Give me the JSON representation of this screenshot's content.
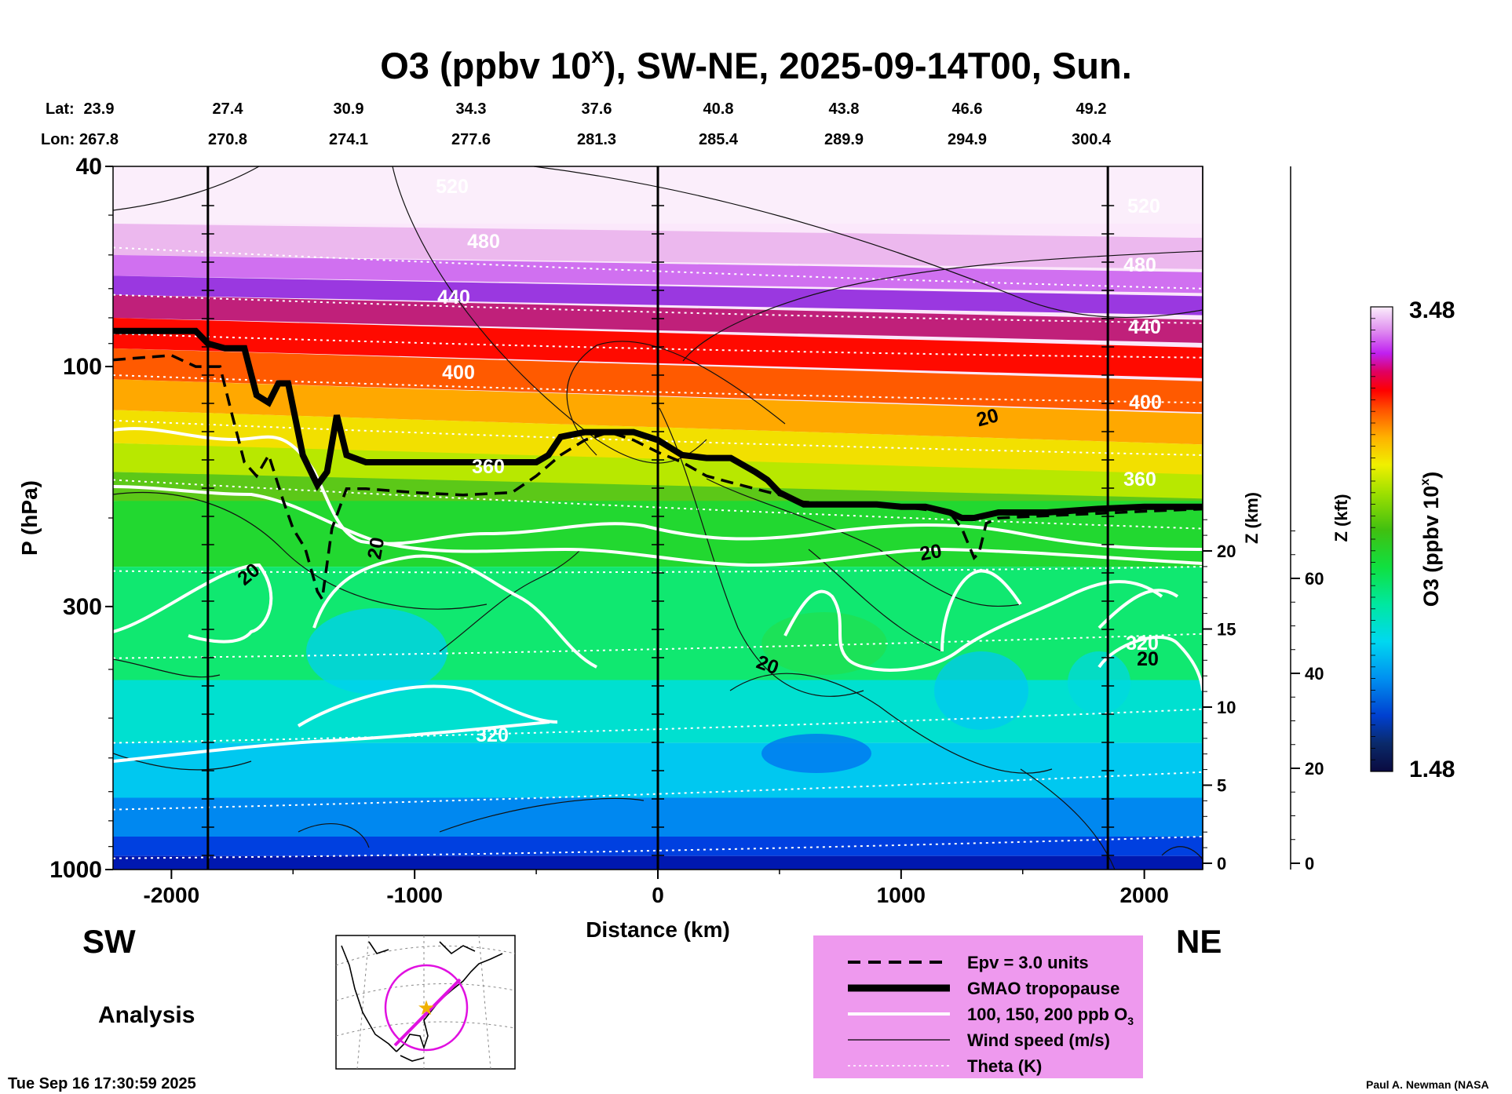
{
  "title": {
    "main": "O3 (ppbv 10",
    "sup": "x",
    "rest": "), SW-NE, 2025-09-14T00, Sun."
  },
  "header": {
    "lat_label": "Lat:",
    "lon_label": "Lon:",
    "lat": [
      "23.9",
      "27.4",
      "30.9",
      "34.3",
      "37.6",
      "40.8",
      "43.8",
      "46.6",
      "49.2"
    ],
    "lon": [
      "267.8",
      "270.8",
      "274.1",
      "277.6",
      "281.3",
      "285.4",
      "289.9",
      "294.9",
      "300.4"
    ]
  },
  "left_label": "SW",
  "right_label": "NE",
  "analysis_label": "Analysis",
  "timestamp": "Tue Sep 16 17:30:59 2025",
  "credit": "Paul A. Newman (NASA",
  "colorbar": {
    "max_label": "3.48",
    "min_label": "1.48",
    "title_main": "O3 (ppbv 10",
    "title_sup": "x",
    "title_rest": ")"
  },
  "legend": {
    "items": [
      {
        "label": "Epv = 3.0 units",
        "style": "dashed"
      },
      {
        "label": "GMAO tropopause",
        "style": "thick"
      },
      {
        "label": "100, 150, 200 ppb O",
        "sub": "3",
        "style": "white"
      },
      {
        "label": "Wind speed (m/s)",
        "style": "thin"
      },
      {
        "label": "Theta (K)",
        "style": "dotted"
      }
    ],
    "background": "#ee99ee"
  },
  "contour_labels": {
    "theta": [
      "520",
      "480",
      "440",
      "400",
      "360",
      "320",
      "520",
      "480",
      "440",
      "400",
      "360",
      "320"
    ],
    "wind": [
      "20",
      "20",
      "20",
      "20",
      "20",
      "20"
    ]
  },
  "chart_data": {
    "type": "heatmap",
    "xlabel": "Distance (km)",
    "ylabel": "P (hPa)",
    "y2label": "Z (km)",
    "y3label": "Z (kft)",
    "xlim": [
      -2240,
      2240
    ],
    "ylim": [
      1000,
      40
    ],
    "yscale": "log",
    "x_ticks": [
      -2000,
      -1000,
      0,
      1000,
      2000
    ],
    "x_tick_labels": [
      "-2000",
      "-1000",
      "0",
      "1000",
      "2000"
    ],
    "y_ticks": [
      1000,
      300,
      100,
      40
    ],
    "y_tick_labels": [
      "1000",
      "300",
      "100",
      "40"
    ],
    "z_km_ticks": [
      0,
      5,
      10,
      15,
      20
    ],
    "z_km_tick_labels": [
      "0",
      "5",
      "10",
      "15",
      "20"
    ],
    "z_kft_ticks": [
      0,
      20,
      40,
      60
    ],
    "z_kft_tick_labels": [
      "0",
      "20",
      "40",
      "60"
    ],
    "colorbar_range": [
      1.48,
      3.48
    ],
    "vertical_lines_km": [
      -1850,
      0,
      1850
    ],
    "tropopause": {
      "x": [
        -2240,
        -1900,
        -1850,
        -1780,
        -1700,
        -1650,
        -1600,
        -1560,
        -1520,
        -1460,
        -1400,
        -1360,
        -1320,
        -1280,
        -1200,
        -1000,
        -800,
        -600,
        -500,
        -450,
        -400,
        -300,
        -200,
        -100,
        0,
        100,
        200,
        300,
        400,
        450,
        500,
        600,
        700,
        800,
        900,
        1000,
        1100,
        1200,
        1250,
        1300,
        1400,
        1600,
        1800,
        2000,
        2240
      ],
      "p": [
        85,
        85,
        90,
        92,
        92,
        114,
        118,
        108,
        108,
        150,
        172,
        162,
        125,
        150,
        155,
        155,
        155,
        155,
        155,
        150,
        138,
        135,
        135,
        135,
        140,
        150,
        152,
        152,
        162,
        168,
        178,
        188,
        188,
        188,
        188,
        190,
        190,
        195,
        200,
        200,
        195,
        195,
        192,
        190,
        190
      ]
    },
    "epv_3": {
      "x": [
        -2240,
        -2000,
        -1900,
        -1800,
        -1750,
        -1700,
        -1650,
        -1600,
        -1540,
        -1500,
        -1450,
        -1400,
        -1380,
        -1340,
        -1280,
        -1200,
        -1000,
        -800,
        -600,
        -500,
        -400,
        -300,
        -200,
        -100,
        0,
        100,
        200,
        300,
        400,
        500,
        600,
        800,
        1000,
        1200,
        1250,
        1300,
        1320,
        1350,
        1400,
        1600,
        1800,
        2000,
        2240
      ],
      "p": [
        97,
        95,
        100,
        100,
        125,
        155,
        165,
        150,
        185,
        210,
        230,
        280,
        290,
        210,
        175,
        175,
        178,
        180,
        178,
        165,
        150,
        140,
        135,
        140,
        148,
        155,
        165,
        170,
        175,
        180,
        186,
        188,
        190,
        195,
        210,
        240,
        235,
        205,
        200,
        198,
        196,
        194,
        192
      ]
    },
    "o3_contours_ppb": [
      100,
      150,
      200
    ],
    "wind_speed_contour_label_ms": 20,
    "theta_levels_K": [
      320,
      360,
      400,
      440,
      480,
      520
    ]
  }
}
